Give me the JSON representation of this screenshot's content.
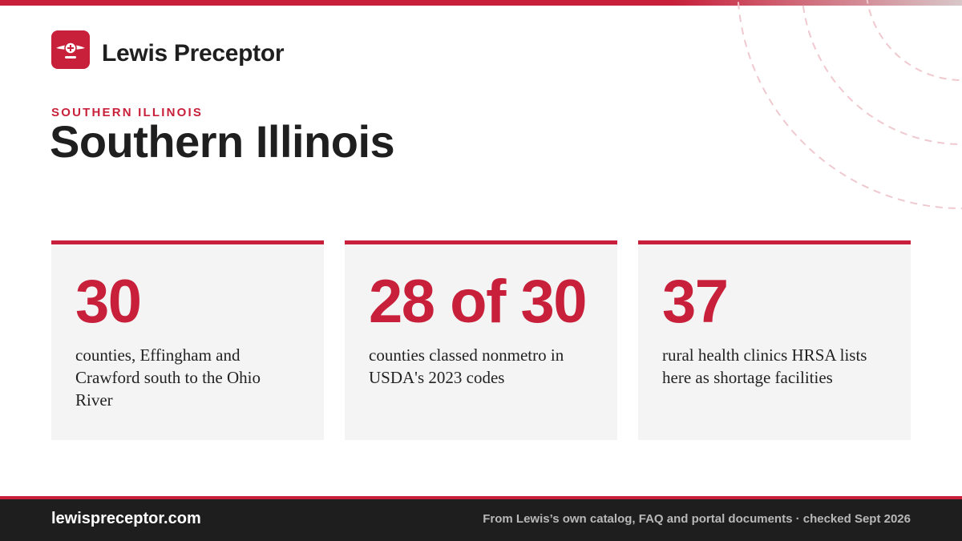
{
  "brand": {
    "name": "Lewis Preceptor"
  },
  "header": {
    "eyebrow": "SOUTHERN ILLINOIS",
    "title": "Southern Illinois"
  },
  "stats": [
    {
      "figure": "30",
      "text": "counties, Effingham and Crawford south to the Ohio River"
    },
    {
      "figure": "28 of 30",
      "text": "counties classed nonmetro in USDA's 2023 codes"
    },
    {
      "figure": "37",
      "text": "rural health clinics HRSA lists here as shortage facilities"
    }
  ],
  "footer": {
    "site": "lewispreceptor.com",
    "source": "From Lewis’s own catalog, FAQ and portal documents · checked Sept 2026"
  }
}
